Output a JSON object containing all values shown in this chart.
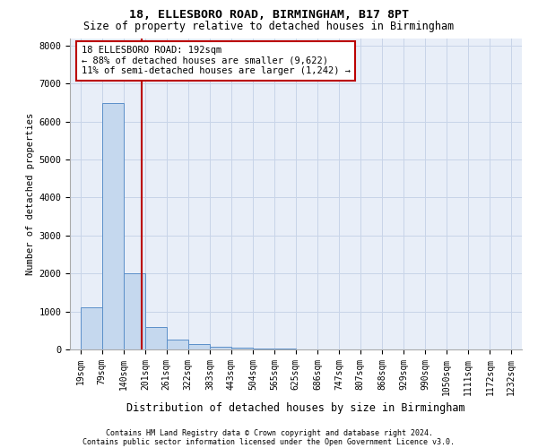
{
  "title1": "18, ELLESBORO ROAD, BIRMINGHAM, B17 8PT",
  "title2": "Size of property relative to detached houses in Birmingham",
  "xlabel": "Distribution of detached houses by size in Birmingham",
  "ylabel": "Number of detached properties",
  "footnote1": "Contains HM Land Registry data © Crown copyright and database right 2024.",
  "footnote2": "Contains public sector information licensed under the Open Government Licence v3.0.",
  "bin_edges": [
    19,
    79,
    140,
    201,
    261,
    322,
    383,
    443,
    504,
    565,
    625,
    686,
    747,
    807,
    868,
    929,
    990,
    1050,
    1111,
    1172,
    1232
  ],
  "bar_heights": [
    1100,
    6500,
    2000,
    600,
    250,
    130,
    80,
    50,
    30,
    15,
    8,
    4,
    2,
    1,
    1,
    0,
    0,
    0,
    0,
    0
  ],
  "bar_color": "#c5d8ee",
  "bar_edge_color": "#5b8fc9",
  "grid_color": "#c8d4e8",
  "background_color": "#e8eef8",
  "red_line_x": 192,
  "annotation_line1": "18 ELLESBORO ROAD: 192sqm",
  "annotation_line2": "← 88% of detached houses are smaller (9,622)",
  "annotation_line3": "11% of semi-detached houses are larger (1,242) →",
  "annotation_box_color": "#bb0000",
  "ylim": [
    0,
    8200
  ],
  "yticks": [
    0,
    1000,
    2000,
    3000,
    4000,
    5000,
    6000,
    7000,
    8000
  ],
  "title1_fontsize": 9.5,
  "title2_fontsize": 8.5,
  "ylabel_fontsize": 7.5,
  "xlabel_fontsize": 8.5,
  "tick_fontsize": 7,
  "annotation_fontsize": 7.5,
  "footnote_fontsize": 6
}
